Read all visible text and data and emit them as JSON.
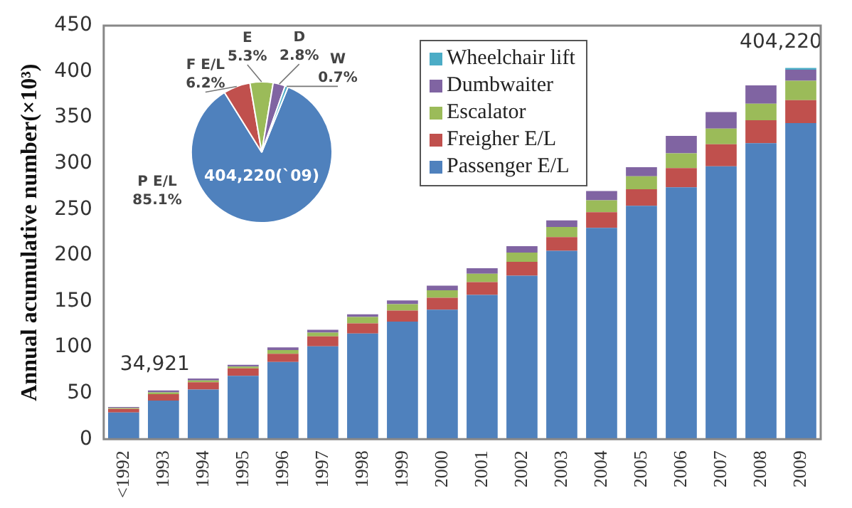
{
  "chart_data": [
    {
      "type": "bar",
      "stacked": true,
      "ylabel": "Annual acumulative number(×10³)",
      "categories": [
        "<1992",
        "1993",
        "1994",
        "1995",
        "1996",
        "1997",
        "1998",
        "1999",
        "2000",
        "2001",
        "2002",
        "2003",
        "2004",
        "2005",
        "2006",
        "2007",
        "2008",
        "2009"
      ],
      "series": [
        {
          "name": "Passenger E/L",
          "color": "#4f81bd",
          "values": [
            29,
            42,
            54,
            69,
            84,
            101,
            115,
            128,
            141,
            157,
            178,
            205,
            230,
            254,
            274,
            297,
            322,
            344
          ]
        },
        {
          "name": "Freigher E/L",
          "color": "#c0504d",
          "values": [
            4,
            7,
            8,
            8,
            9,
            11,
            11,
            12,
            13,
            14,
            15,
            15,
            17,
            18,
            21,
            24,
            25,
            25
          ]
        },
        {
          "name": "Escalator",
          "color": "#9bbb59",
          "values": [
            1,
            2,
            2,
            2,
            4,
            4,
            7,
            7,
            8,
            9,
            10,
            11,
            13,
            14,
            16,
            17,
            18,
            21
          ]
        },
        {
          "name": "Dumbwaiter",
          "color": "#8064a2",
          "values": [
            1,
            2,
            2,
            2,
            3,
            3,
            3,
            4,
            5,
            6,
            7,
            7,
            10,
            10,
            19,
            18,
            20,
            12
          ]
        },
        {
          "name": "Wheelchair lift",
          "color": "#4bacc6",
          "values": [
            0,
            0,
            0,
            0,
            0,
            0,
            0,
            0,
            0,
            0,
            0,
            0,
            0,
            0,
            0,
            0,
            0,
            2
          ]
        }
      ],
      "annotations": [
        {
          "text": "34,921",
          "x": "<1992",
          "y": 35
        },
        {
          "text": "404,220",
          "x": "2009",
          "y": 404
        }
      ],
      "ylim": [
        0,
        450
      ],
      "yticks": [
        0,
        50,
        100,
        150,
        200,
        250,
        300,
        350,
        400,
        450
      ],
      "grid": false,
      "legend": "top"
    },
    {
      "type": "pie",
      "categories": [
        "P E/L",
        "F E/L",
        "E",
        "D",
        "W"
      ],
      "values": [
        85.1,
        6.2,
        5.3,
        2.8,
        0.7
      ],
      "colors": [
        "#4f81bd",
        "#c0504d",
        "#9bbb59",
        "#8064a2",
        "#4bacc6"
      ],
      "value_labels": [
        "85.1%",
        "6.2%",
        "5.3%",
        "2.8%",
        "0.7%"
      ],
      "annotations": [
        "404,220(`09)"
      ]
    }
  ]
}
